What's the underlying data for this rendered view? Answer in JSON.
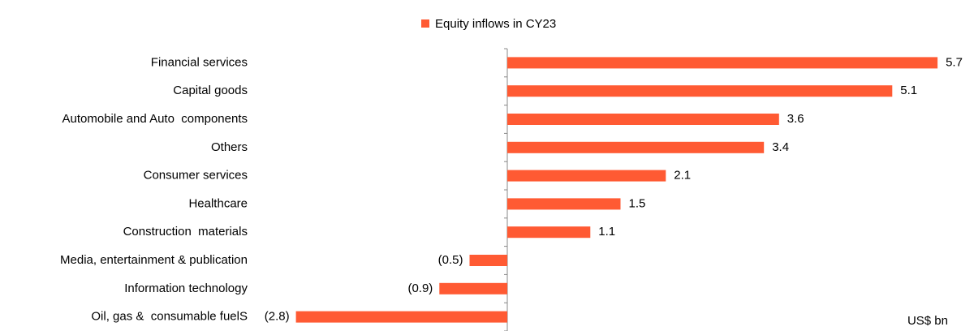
{
  "chart_data": {
    "type": "hbar",
    "categories": [
      "Financial services",
      "Capital goods",
      "Automobile and Auto  components",
      "Others",
      "Consumer services",
      "Healthcare",
      "Construction  materials",
      "Media, entertainment & publication",
      "Information technology",
      "Oil, gas &  consumable fuelS"
    ],
    "series": [
      {
        "name": "Equity inflows in CY23",
        "color": "#ff5a33",
        "values": [
          5.7,
          5.1,
          3.6,
          3.4,
          2.1,
          1.5,
          1.1,
          -0.5,
          -0.9,
          -2.8
        ],
        "value_labels": [
          "5.7",
          "5.1",
          "3.6",
          "3.4",
          "2.1",
          "1.5",
          "1.1",
          "(0.5)",
          "(0.9)",
          "(2.8)"
        ]
      }
    ],
    "xlim": [
      -3,
      6
    ],
    "annotation": "US$ bn",
    "legend": "top"
  }
}
